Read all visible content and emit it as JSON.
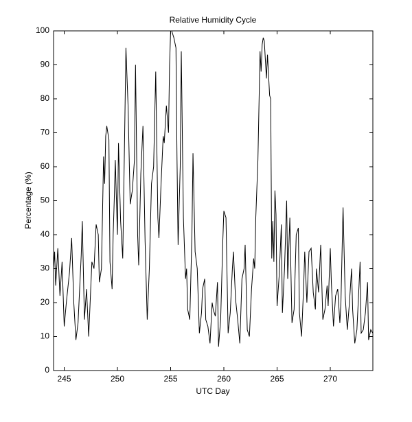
{
  "chart_data": {
    "type": "line",
    "title": "Relative Humidity Cycle",
    "x_label": "UTC Day",
    "y_label": "Percentage (%)",
    "xlim": [
      244,
      274
    ],
    "ylim": [
      0,
      100
    ],
    "xticks": [
      245,
      250,
      255,
      260,
      265,
      270
    ],
    "yticks": [
      0,
      10,
      20,
      30,
      40,
      50,
      60,
      70,
      80,
      90,
      100
    ],
    "grid": false,
    "series": [
      {
        "color": "#000000",
        "x": [
          244.0,
          244.1,
          244.2,
          244.4,
          244.6,
          244.8,
          245.0,
          245.2,
          245.5,
          245.7,
          245.9,
          246.1,
          246.3,
          246.6,
          246.7,
          246.9,
          247.1,
          247.3,
          247.6,
          247.8,
          248.0,
          248.2,
          248.3,
          248.5,
          248.7,
          248.8,
          248.9,
          249.0,
          249.2,
          249.3,
          249.5,
          249.6,
          249.7,
          249.8,
          250.0,
          250.1,
          250.3,
          250.5,
          250.7,
          250.8,
          251.0,
          251.2,
          251.4,
          251.6,
          251.7,
          251.9,
          252.0,
          252.2,
          252.4,
          252.6,
          252.8,
          253.0,
          253.2,
          253.4,
          253.6,
          253.8,
          253.9,
          254.1,
          254.3,
          254.4,
          254.6,
          254.8,
          254.9,
          255.0,
          255.1,
          255.3,
          255.5,
          255.6,
          255.7,
          255.9,
          256.0,
          256.2,
          256.4,
          256.5,
          256.6,
          256.8,
          257.0,
          257.1,
          257.3,
          257.5,
          257.7,
          257.9,
          258.0,
          258.2,
          258.3,
          258.5,
          258.7,
          258.9,
          259.0,
          259.2,
          259.4,
          259.5,
          259.7,
          259.9,
          260.0,
          260.2,
          260.4,
          260.6,
          260.8,
          260.9,
          261.1,
          261.3,
          261.5,
          261.7,
          261.9,
          262.0,
          262.2,
          262.4,
          262.6,
          262.8,
          262.9,
          263.0,
          263.2,
          263.4,
          263.5,
          263.6,
          263.7,
          263.8,
          264.0,
          264.1,
          264.3,
          264.4,
          264.5,
          264.6,
          264.7,
          264.8,
          264.9,
          265.0,
          265.2,
          265.4,
          265.5,
          265.7,
          265.9,
          266.0,
          266.2,
          266.4,
          266.6,
          266.8,
          267.0,
          267.1,
          267.3,
          267.5,
          267.6,
          267.8,
          268.0,
          268.2,
          268.4,
          268.6,
          268.7,
          268.9,
          269.1,
          269.3,
          269.5,
          269.7,
          269.8,
          270.0,
          270.1,
          270.3,
          270.5,
          270.7,
          270.9,
          271.0,
          271.2,
          271.4,
          271.6,
          271.8,
          272.0,
          272.1,
          272.3,
          272.5,
          272.7,
          272.8,
          272.9,
          273.1,
          273.3,
          273.5,
          273.6,
          273.8,
          274.0
        ],
        "values": [
          30,
          35,
          25,
          36,
          22,
          32,
          13,
          20,
          29,
          39,
          20,
          9,
          14,
          34,
          44,
          15,
          24,
          10,
          32,
          30,
          43,
          40,
          26,
          30,
          63,
          55,
          69,
          72,
          68,
          32,
          24,
          40,
          50,
          62,
          40,
          67,
          44,
          33,
          74,
          95,
          78,
          49,
          53,
          62,
          90,
          40,
          31,
          58,
          72,
          38,
          15,
          30,
          55,
          60,
          88,
          45,
          39,
          55,
          69,
          67,
          78,
          70,
          90,
          100,
          100,
          98,
          95,
          62,
          37,
          60,
          94,
          45,
          27,
          30,
          18,
          15,
          40,
          64,
          35,
          30,
          11,
          17,
          24,
          27,
          15,
          13,
          8,
          20,
          18,
          16,
          26,
          7,
          15,
          38,
          47,
          45,
          11,
          17,
          30,
          35,
          21,
          15,
          8,
          27,
          30,
          37,
          12,
          10,
          24,
          33,
          30,
          45,
          62,
          94,
          88,
          96,
          98,
          97,
          86,
          93,
          81,
          80,
          33,
          44,
          32,
          53,
          46,
          19,
          28,
          43,
          17,
          30,
          50,
          27,
          45,
          14,
          18,
          40,
          42,
          17,
          10,
          25,
          35,
          20,
          35,
          36,
          23,
          18,
          30,
          23,
          37,
          15,
          18,
          25,
          19,
          36,
          26,
          13,
          22,
          24,
          14,
          20,
          48,
          22,
          12,
          20,
          30,
          18,
          8,
          12,
          25,
          32,
          11,
          12,
          17,
          26,
          9,
          12,
          11
        ]
      }
    ]
  }
}
